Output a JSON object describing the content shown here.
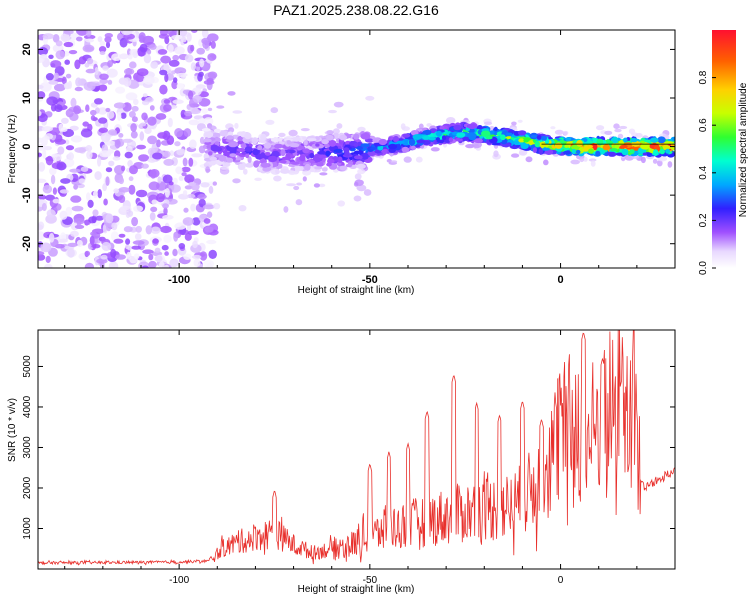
{
  "title": "PAZ1.2025.238.08.22.G16",
  "chart_data": [
    {
      "type": "heatmap",
      "xlabel": "Height of straight line (km)",
      "ylabel": "Frequency (Hz)",
      "xlim": [
        -137,
        30
      ],
      "ylim": [
        -25,
        24
      ],
      "xticks": [
        -100,
        -50,
        0
      ],
      "yticks": [
        -20,
        -10,
        0,
        10,
        20
      ],
      "colorbar": {
        "label": "Normalized spectral amplitude",
        "range": [
          0,
          1
        ],
        "ticks": [
          "0.0",
          "0.2",
          "0.4",
          "0.6",
          "0.8"
        ],
        "colormap": "rainbow (white-purple-blue-cyan-green-yellow-red)"
      },
      "ridge": {
        "description": "frequency ridge of signal",
        "x": [
          -93,
          -85,
          -75,
          -65,
          -55,
          -45,
          -35,
          -25,
          -15,
          -5,
          5,
          15,
          30
        ],
        "y": [
          0,
          -0.5,
          -2,
          -1.5,
          -1,
          0,
          2,
          3,
          2,
          0.5,
          0,
          0,
          0
        ],
        "amplitude": [
          0.15,
          0.2,
          0.2,
          0.2,
          0.3,
          0.35,
          0.45,
          0.5,
          0.6,
          0.7,
          0.85,
          0.9,
          0.95
        ]
      },
      "noise_region": {
        "x": [
          -137,
          -93
        ],
        "y": [
          -25,
          24
        ],
        "amplitude": [
          0,
          0.15
        ]
      }
    },
    {
      "type": "line",
      "xlabel": "Height of straight line (km)",
      "ylabel": "SNR (10 * v/v)",
      "xlim": [
        -137,
        30
      ],
      "ylim": [
        0,
        5900
      ],
      "xticks": [
        -100,
        -50,
        0
      ],
      "yticks": [
        1000,
        2000,
        3000,
        4000,
        5000
      ],
      "series": [
        {
          "color": "#e8302c",
          "x": [
            -137,
            -120,
            -100,
            -92,
            -88,
            -80,
            -75,
            -70,
            -65,
            -60,
            -55,
            -50,
            -45,
            -40,
            -35,
            -30,
            -25,
            -20,
            -15,
            -10,
            -5,
            0,
            3,
            5,
            6,
            7,
            10,
            15,
            20,
            21,
            22,
            25,
            30
          ],
          "y": [
            150,
            160,
            170,
            200,
            550,
            800,
            900,
            600,
            400,
            500,
            600,
            800,
            1000,
            1100,
            1200,
            1300,
            1400,
            1500,
            1500,
            1700,
            2200,
            3300,
            3500,
            3800,
            700,
            3200,
            3600,
            4000,
            3800,
            2200,
            2000,
            2200,
            2400
          ],
          "peaks": [
            {
              "x": -75,
              "y": 1950
            },
            {
              "x": -50,
              "y": 2600
            },
            {
              "x": -45,
              "y": 2900
            },
            {
              "x": -40,
              "y": 3100
            },
            {
              "x": -35,
              "y": 3900
            },
            {
              "x": -28,
              "y": 4800
            },
            {
              "x": -22,
              "y": 4100
            },
            {
              "x": -16,
              "y": 3800
            },
            {
              "x": -10,
              "y": 4150
            },
            {
              "x": -5,
              "y": 3700
            },
            {
              "x": 0,
              "y": 3900
            },
            {
              "x": 6,
              "y": 5850
            },
            {
              "x": 11,
              "y": 5200
            },
            {
              "x": 16,
              "y": 4650
            }
          ]
        }
      ]
    }
  ]
}
